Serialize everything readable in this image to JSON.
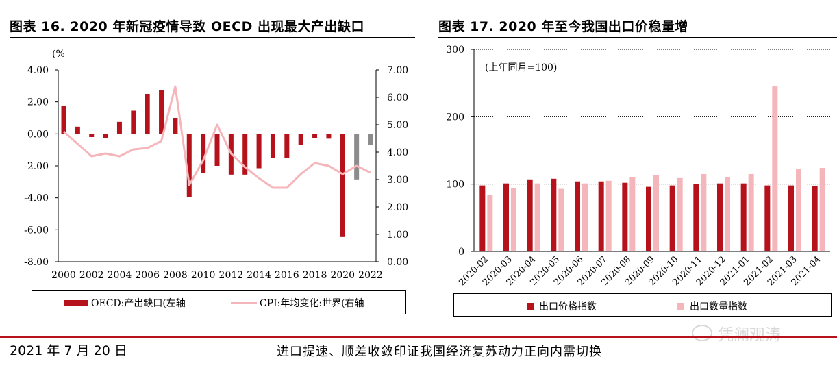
{
  "left": {
    "title": "图表 16. 2020 年新冠疫情导致 OECD 出现最大产出缺口",
    "unit_label": "(%",
    "legend": {
      "bar": "OECD:产出缺口(左轴",
      "line": "CPI:年均变化:世界(右轴"
    }
  },
  "right": {
    "title": "图表 17. 2020 年至今我国出口价稳量增",
    "annotation": "(上年同月=100)",
    "legend": {
      "price": "出口价格指数",
      "volume": "出口数量指数"
    }
  },
  "footer": {
    "date": "2021 年 7 月 20 日",
    "text": "进口提速、顺差收敛印证我国经济复苏动力正向内需切换",
    "watermark": "凭澜观涛"
  },
  "colors": {
    "bar": "#b5121b",
    "bar_forecast": "#8c8c8c",
    "line": "#f4b6bb",
    "light_bar": "#f4b6bb",
    "footer_rule": "#b5121b"
  },
  "chart_data": [
    {
      "type": "bar",
      "x": [
        2000,
        2001,
        2002,
        2003,
        2004,
        2005,
        2006,
        2007,
        2008,
        2009,
        2010,
        2011,
        2012,
        2013,
        2014,
        2015,
        2016,
        2017,
        2018,
        2019,
        2020,
        2021,
        2022
      ],
      "xticks": [
        "2000",
        "2002",
        "2004",
        "2006",
        "2008",
        "2010",
        "2012",
        "2014",
        "2016",
        "2018",
        "2020",
        "2022"
      ],
      "series": [
        {
          "name": "OECD:产出缺口(左轴",
          "axis": "left",
          "values": [
            1.75,
            0.45,
            -0.2,
            -0.25,
            0.75,
            1.45,
            2.5,
            2.75,
            1.0,
            -3.95,
            -2.45,
            -2.0,
            -2.55,
            -2.55,
            -2.15,
            -1.5,
            -1.5,
            -0.7,
            -0.25,
            -0.3,
            -6.45,
            -2.85,
            -0.7
          ],
          "forecast_from": 2021
        },
        {
          "name": "CPI:年均变化:世界(右轴",
          "type": "line",
          "axis": "right",
          "values": [
            4.75,
            4.3,
            3.85,
            3.95,
            3.85,
            4.1,
            4.15,
            4.4,
            6.4,
            2.8,
            3.7,
            5.0,
            3.95,
            3.45,
            3.05,
            2.7,
            2.7,
            3.2,
            3.6,
            3.5,
            3.2,
            3.5,
            3.25
          ]
        }
      ],
      "ylim": [
        -8,
        4
      ],
      "yticks": [
        "4.00",
        "2.00",
        "0.00",
        "-2.00",
        "-4.00",
        "-6.00",
        "-8.00"
      ],
      "y2lim": [
        0,
        7
      ],
      "y2ticks": [
        "7.00",
        "6.00",
        "5.00",
        "4.00",
        "3.00",
        "2.00",
        "1.00",
        "0.00"
      ]
    },
    {
      "type": "bar",
      "categories": [
        "2020-02",
        "2020-03",
        "2020-04",
        "2020-05",
        "2020-06",
        "2020-07",
        "2020-08",
        "2020-09",
        "2020-10",
        "2020-11",
        "2020-12",
        "2021-01",
        "2021-02",
        "2021-03",
        "2021-04"
      ],
      "series": [
        {
          "name": "出口价格指数",
          "values": [
            98,
            101,
            107,
            108,
            104,
            104,
            102,
            96,
            98,
            100,
            101,
            101,
            98,
            98,
            97
          ]
        },
        {
          "name": "出口数量指数",
          "values": [
            84,
            94,
            101,
            93,
            101,
            105,
            110,
            113,
            109,
            115,
            110,
            115,
            245,
            122,
            124
          ]
        }
      ],
      "ylim": [
        0,
        300
      ],
      "yticks": [
        "300",
        "200",
        "100",
        "0"
      ]
    }
  ]
}
